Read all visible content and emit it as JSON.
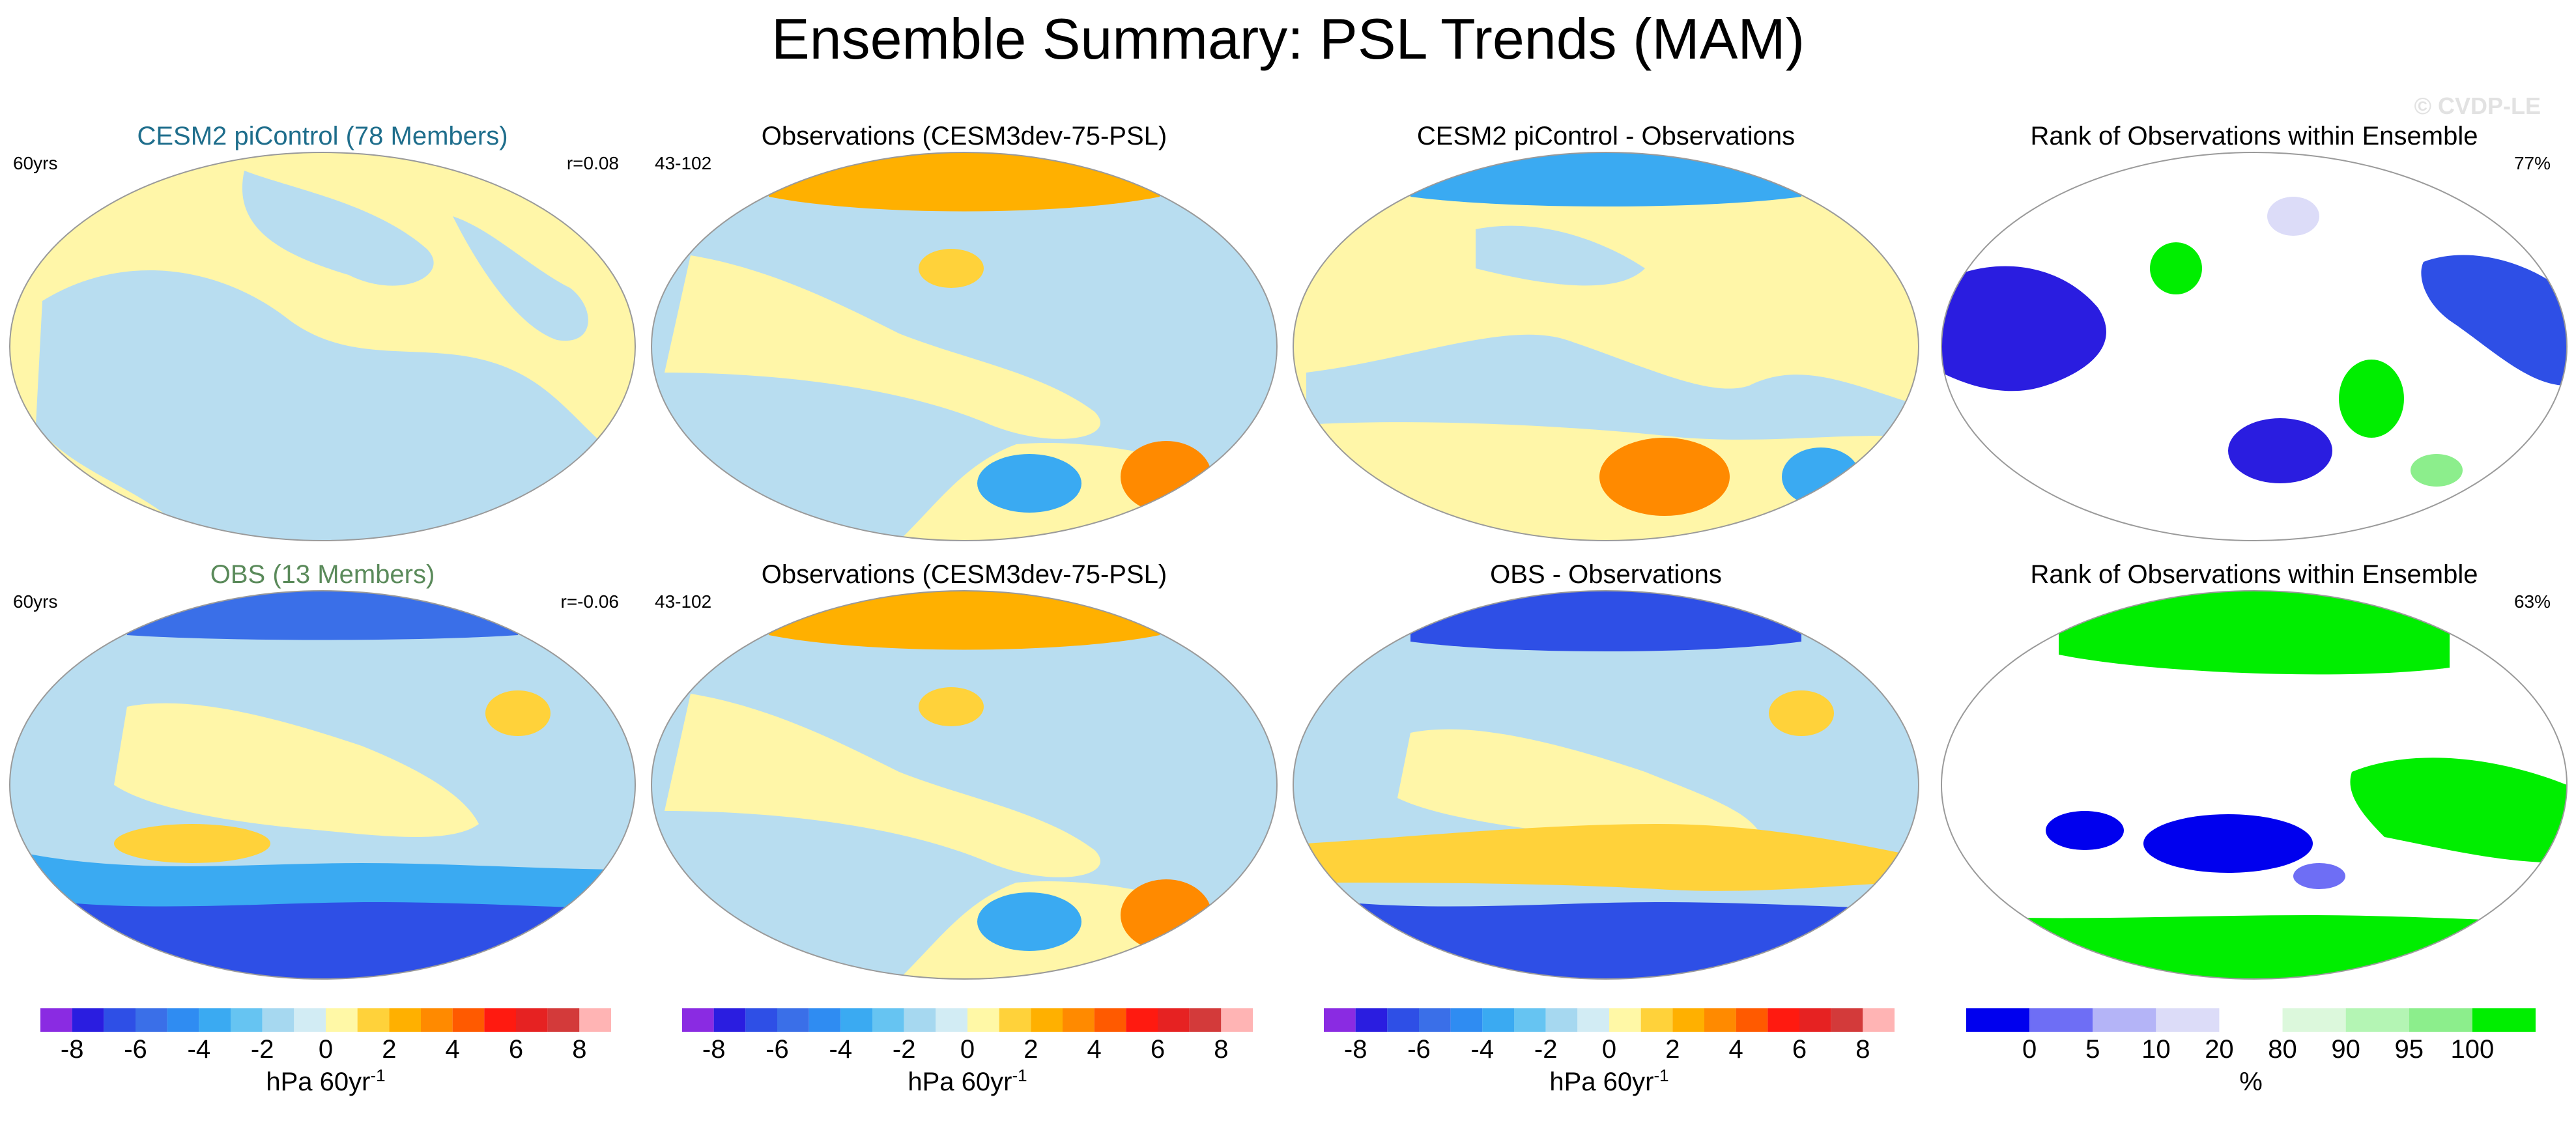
{
  "title": "Ensemble Summary: PSL Trends (MAM)",
  "watermark": "© CVDP-LE",
  "rows": [
    {
      "panels": [
        {
          "title": "CESM2 piControl (78 Members)",
          "title_color": "#1f6e8c",
          "left_label": "60yrs",
          "right_label": "r=0.08",
          "type": "trend"
        },
        {
          "title": "Observations (CESM3dev-75-PSL)",
          "title_color": "#000000",
          "left_label": "43-102",
          "right_label": "",
          "type": "trend"
        },
        {
          "title": "CESM2 piControl - Observations",
          "title_color": "#000000",
          "left_label": "",
          "right_label": "",
          "type": "trend"
        },
        {
          "title": "Rank of Observations within Ensemble",
          "title_color": "#000000",
          "left_label": "",
          "right_label": "77%",
          "type": "rank"
        }
      ]
    },
    {
      "panels": [
        {
          "title": "OBS (13 Members)",
          "title_color": "#5a8a5a",
          "left_label": "60yrs",
          "right_label": "r=-0.06",
          "type": "trend"
        },
        {
          "title": "Observations (CESM3dev-75-PSL)",
          "title_color": "#000000",
          "left_label": "43-102",
          "right_label": "",
          "type": "trend"
        },
        {
          "title": "OBS - Observations",
          "title_color": "#000000",
          "left_label": "",
          "right_label": "",
          "type": "trend"
        },
        {
          "title": "Rank of Observations within Ensemble",
          "title_color": "#000000",
          "left_label": "",
          "right_label": "63%",
          "type": "rank"
        }
      ]
    }
  ],
  "chart_data": [
    {
      "type": "heatmap",
      "name": "trend colorbar",
      "units": "hPa 60yr",
      "units_superscript": "-1",
      "levels": [
        -8,
        -7,
        -6,
        -5,
        -4,
        -3,
        -2,
        -1,
        0,
        1,
        2,
        3,
        4,
        5,
        6,
        7,
        8
      ],
      "tick_labels": [
        "-8",
        "-6",
        "-4",
        "-2",
        "0",
        "2",
        "4",
        "6",
        "8"
      ],
      "colors": [
        "#8a2be2",
        "#2a1de0",
        "#2e4fe6",
        "#3a6fe8",
        "#2f8cf2",
        "#3aaaf2",
        "#66c4f2",
        "#a6d8f0",
        "#d2ecf4",
        "#fff8a6",
        "#ffd23a",
        "#ffb000",
        "#ff8a00",
        "#ff5a00",
        "#ff1a10",
        "#e62222",
        "#d33a3a",
        "#ffb4b4"
      ]
    },
    {
      "type": "heatmap",
      "name": "rank colorbar",
      "units": "%",
      "levels": [
        0,
        5,
        10,
        20,
        80,
        90,
        95,
        100
      ],
      "tick_labels": [
        "0",
        "5",
        "10",
        "20",
        "80",
        "90",
        "95",
        "100"
      ],
      "colors": [
        "#0000ee",
        "#6e6ef5",
        "#b4b4f7",
        "#dcdcf8",
        "#ffffff",
        "#dcf8dc",
        "#b4f5b4",
        "#8cee8c",
        "#00ee00"
      ]
    }
  ],
  "colors": {
    "map_blue": "#b8ddf0",
    "map_yellow": "#fff6a8",
    "coast": "#888888"
  }
}
